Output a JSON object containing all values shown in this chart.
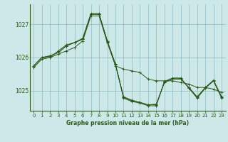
{
  "background_color": "#cde8e8",
  "grid_color": "#8bbcbc",
  "line_color": "#2d5a1b",
  "title": "Graphe pression niveau de la mer (hPa)",
  "xlim": [
    -0.5,
    23.5
  ],
  "ylim": [
    1024.4,
    1027.6
  ],
  "yticks": [
    1025,
    1026,
    1027
  ],
  "xticks": [
    0,
    1,
    2,
    3,
    4,
    5,
    6,
    7,
    8,
    9,
    10,
    11,
    12,
    13,
    14,
    15,
    16,
    17,
    18,
    19,
    20,
    21,
    22,
    23
  ],
  "series": [
    [
      1025.75,
      1026.0,
      1026.0,
      1026.1,
      1026.2,
      1026.3,
      1026.5,
      1027.25,
      1027.25,
      1026.45,
      1025.75,
      1025.65,
      1025.6,
      1025.55,
      1025.35,
      1025.3,
      1025.3,
      1025.3,
      1025.25,
      1025.2,
      1025.1,
      1025.1,
      1025.05,
      1024.95
    ],
    [
      1025.75,
      1026.0,
      1026.05,
      1026.15,
      1026.35,
      1026.45,
      1026.55,
      1027.3,
      1027.3,
      1026.5,
      1025.8,
      1024.82,
      1024.72,
      1024.65,
      1024.58,
      1024.6,
      1025.25,
      1025.35,
      1025.35,
      1025.1,
      1024.82,
      1025.1,
      1025.32,
      1024.82
    ],
    [
      1025.75,
      1026.0,
      1026.05,
      1026.15,
      1026.35,
      1026.45,
      1026.55,
      1027.3,
      1027.3,
      1026.5,
      1025.8,
      1024.8,
      1024.7,
      1024.65,
      1024.58,
      1024.58,
      1025.28,
      1025.38,
      1025.38,
      1025.08,
      1024.8,
      1025.08,
      1025.3,
      1024.8
    ],
    [
      1025.7,
      1025.95,
      1026.0,
      1026.2,
      1026.38,
      1026.45,
      1026.58,
      1027.32,
      1027.32,
      1026.48,
      1025.78,
      1024.78,
      1024.68,
      1024.63,
      1024.55,
      1024.55,
      1025.28,
      1025.38,
      1025.38,
      1025.08,
      1024.78,
      1025.08,
      1025.3,
      1024.78
    ]
  ]
}
